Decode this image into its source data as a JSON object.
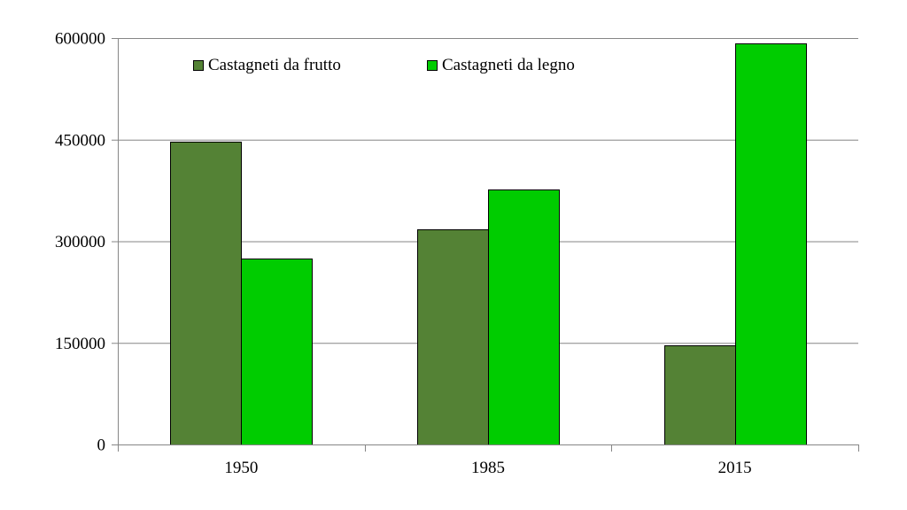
{
  "chart_data": {
    "type": "bar",
    "categories": [
      "1950",
      "1985",
      "2015"
    ],
    "series": [
      {
        "name": "Castagneti da frutto",
        "values": [
          447000,
          317000,
          147000
        ],
        "color": "#548235"
      },
      {
        "name": "Castagneti da legno",
        "values": [
          275000,
          376000,
          592000
        ],
        "color": "#00CC00"
      }
    ],
    "y_ticks": [
      "0",
      "150000",
      "300000",
      "450000",
      "600000"
    ],
    "ylim": [
      0,
      600000
    ],
    "grid": true,
    "legend_position": "top-left",
    "title": "",
    "xlabel": "",
    "ylabel": ""
  }
}
